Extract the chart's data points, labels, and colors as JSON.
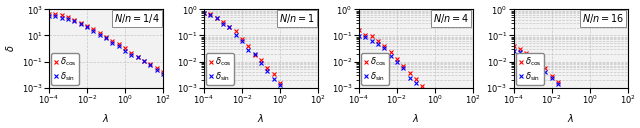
{
  "panels": [
    {
      "title": "N/n = 1/4",
      "xlim": [
        0.0001,
        100.0
      ],
      "ylim": [
        0.001,
        1000.0
      ],
      "ylabel": true,
      "A_cos": 500,
      "lam_c_cos": 0.001,
      "n_cos": 0.9,
      "A_sin": 380,
      "lam_c_sin": 0.001,
      "n_sin": 0.9
    },
    {
      "title": "N/n = 1",
      "xlim": [
        0.0001,
        100.0
      ],
      "ylim": [
        0.001,
        1.0
      ],
      "ylabel": false,
      "A_cos": 1.0,
      "lam_c_cos": 0.0005,
      "n_cos": 0.85,
      "A_sin": 0.82,
      "lam_c_sin": 0.0005,
      "n_sin": 0.85
    },
    {
      "title": "N/n = 4",
      "xlim": [
        0.0001,
        100.0
      ],
      "ylim": [
        0.001,
        1.0
      ],
      "ylabel": false,
      "A_cos": 0.18,
      "lam_c_cos": 0.0005,
      "n_cos": 0.85,
      "A_sin": 0.13,
      "lam_c_sin": 0.0005,
      "n_sin": 0.85
    },
    {
      "title": "N/n = 16",
      "xlim": [
        0.0001,
        100.0
      ],
      "ylim": [
        0.001,
        1.0
      ],
      "ylabel": false,
      "A_cos": 0.045,
      "lam_c_cos": 0.0005,
      "n_cos": 0.85,
      "A_sin": 0.033,
      "lam_c_sin": 0.0005,
      "n_sin": 0.85
    }
  ],
  "lambda_exponents": [
    -4,
    -3.67,
    -3.33,
    -3.0,
    -2.67,
    -2.33,
    -2.0,
    -1.67,
    -1.33,
    -1.0,
    -0.67,
    -0.33,
    0.0,
    0.33,
    0.67,
    1.0,
    1.33,
    1.67,
    2.0
  ],
  "cos_color": "#FF0000",
  "sin_color": "#0000FF",
  "marker": "x",
  "markersize": 3.5,
  "markeredgewidth": 0.8,
  "grid_color": "#BBBBBB",
  "grid_style": "--",
  "xlabel": "$\\lambda$",
  "ylabel_label": "$\\delta$",
  "bg_color": "#F2F2F2",
  "title_fontsize": 7,
  "label_fontsize": 7,
  "tick_fontsize": 6,
  "legend_fontsize": 6
}
